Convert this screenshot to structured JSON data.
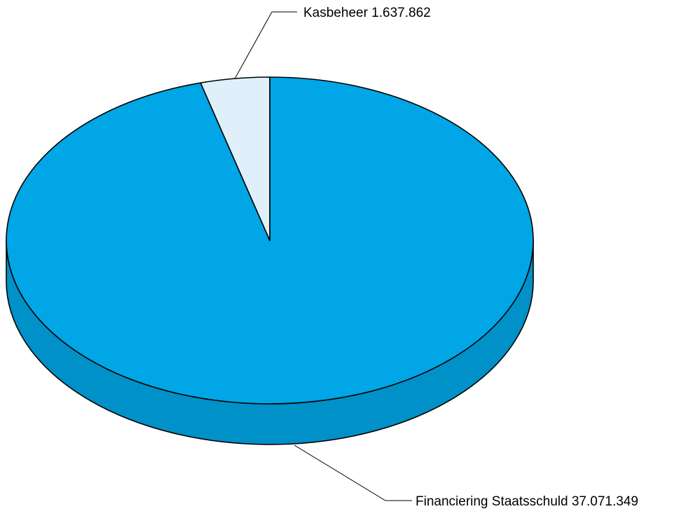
{
  "chart_data": {
    "type": "pie",
    "title": "",
    "style": "3d",
    "slices": [
      {
        "label": "Kasbeheer",
        "value": 1637862,
        "display_value": "1.637.862",
        "color": "#dff0fb"
      },
      {
        "label": "Financiering Staatsschuld",
        "value": 37071349,
        "display_value": "37.071.349",
        "color": "#00a6e5",
        "side_color": "#0091c8"
      }
    ]
  }
}
